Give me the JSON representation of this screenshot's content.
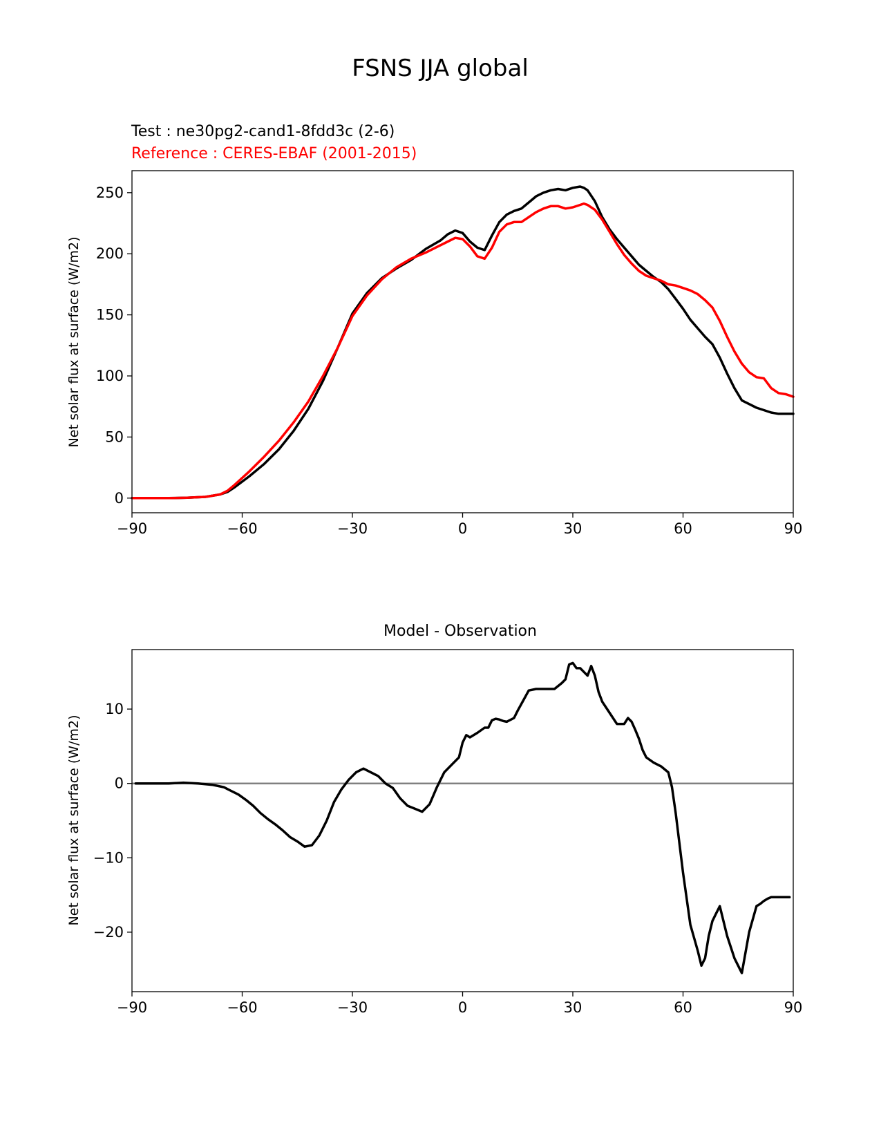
{
  "figure": {
    "suptitle": "FSNS JJA global",
    "test_label": "Test : ne30pg2-cand1-8fdd3c (2-6)",
    "reference_label": "Reference : CERES-EBAF (2001-2015)",
    "diff_title": "Model - Observation"
  },
  "colors": {
    "test": "#000000",
    "reference": "#ff0000",
    "zero_line": "#808080"
  },
  "chart_data": [
    {
      "type": "line",
      "ylabel": "Net solar flux at surface (W/m2)",
      "xlim": [
        -90,
        90
      ],
      "ylim": [
        -12,
        268
      ],
      "xticks": [
        -90,
        -60,
        -30,
        0,
        30,
        60,
        90
      ],
      "xtick_labels": [
        "−90",
        "−60",
        "−30",
        "0",
        "30",
        "60",
        "90"
      ],
      "yticks": [
        0,
        50,
        100,
        150,
        200,
        250
      ],
      "ytick_labels": [
        "0",
        "50",
        "100",
        "150",
        "200",
        "250"
      ],
      "series": [
        {
          "name": "Test : ne30pg2-cand1-8fdd3c (2-6)",
          "color": "#000000",
          "x": [
            -90,
            -80,
            -75,
            -70,
            -66,
            -64,
            -62,
            -58,
            -54,
            -50,
            -46,
            -42,
            -38,
            -34,
            -30,
            -26,
            -22,
            -18,
            -14,
            -10,
            -6,
            -4,
            -2,
            0,
            2,
            4,
            6,
            8,
            10,
            12,
            14,
            16,
            18,
            20,
            22,
            24,
            26,
            28,
            30,
            32,
            33,
            34,
            36,
            38,
            40,
            42,
            44,
            46,
            48,
            50,
            52,
            54,
            56,
            58,
            60,
            62,
            64,
            66,
            68,
            70,
            72,
            74,
            76,
            78,
            80,
            82,
            84,
            86,
            88,
            90
          ],
          "y": [
            0,
            0,
            0.3,
            1,
            3,
            5,
            9,
            18,
            28,
            40,
            55,
            73,
            96,
            123,
            151,
            168,
            180,
            188,
            195,
            204,
            211,
            216,
            219,
            217,
            210,
            205,
            203,
            215,
            226,
            232,
            235,
            237,
            242,
            247,
            250,
            252,
            253,
            252,
            254,
            255,
            254,
            252,
            243,
            230,
            220,
            212,
            205,
            198,
            191,
            186,
            181,
            177,
            171,
            163,
            155,
            146,
            139,
            132,
            126,
            115,
            102,
            90,
            80,
            77,
            74,
            72,
            70,
            69,
            69,
            69
          ]
        },
        {
          "name": "Reference : CERES-EBAF (2001-2015)",
          "color": "#ff0000",
          "x": [
            -90,
            -80,
            -75,
            -70,
            -66,
            -64,
            -62,
            -58,
            -54,
            -50,
            -46,
            -42,
            -38,
            -34,
            -30,
            -26,
            -22,
            -18,
            -14,
            -10,
            -6,
            -4,
            -2,
            0,
            2,
            4,
            6,
            8,
            10,
            12,
            14,
            16,
            18,
            20,
            22,
            24,
            26,
            28,
            30,
            32,
            33,
            34,
            36,
            38,
            40,
            42,
            44,
            46,
            48,
            50,
            52,
            54,
            56,
            58,
            60,
            62,
            64,
            66,
            68,
            70,
            72,
            74,
            76,
            78,
            80,
            82,
            84,
            86,
            88,
            90
          ],
          "y": [
            0,
            0,
            0.3,
            1,
            3,
            6,
            11,
            22,
            34,
            47,
            62,
            79,
            100,
            123,
            149,
            166,
            179,
            189,
            196,
            201,
            207,
            210,
            213,
            212,
            206,
            198,
            196,
            205,
            218,
            224,
            226,
            226,
            230,
            234,
            237,
            239,
            239,
            237,
            238,
            240,
            241,
            240,
            236,
            228,
            218,
            208,
            199,
            192,
            186,
            182,
            180,
            178,
            175,
            174,
            172,
            170,
            167,
            162,
            156,
            145,
            132,
            120,
            110,
            103,
            99,
            98,
            90,
            86,
            85,
            83
          ]
        }
      ]
    },
    {
      "type": "line",
      "title": "Model - Observation",
      "ylabel": "Net solar flux at surface (W/m2)",
      "xlim": [
        -90,
        90
      ],
      "ylim": [
        -28,
        18
      ],
      "xticks": [
        -90,
        -60,
        -30,
        0,
        30,
        60,
        90
      ],
      "xtick_labels": [
        "−90",
        "−60",
        "−30",
        "0",
        "30",
        "60",
        "90"
      ],
      "yticks": [
        -20,
        -10,
        0,
        10
      ],
      "ytick_labels": [
        "−20",
        "−10",
        "0",
        "10"
      ],
      "zero_line": 0,
      "series": [
        {
          "color": "#000000",
          "x": [
            -89,
            -80,
            -76,
            -72,
            -68,
            -65,
            -63,
            -61,
            -59,
            -57,
            -55,
            -53,
            -51,
            -49,
            -47,
            -45,
            -43,
            -41,
            -39,
            -37,
            -35,
            -33,
            -31,
            -29,
            -27,
            -25,
            -23,
            -21,
            -19,
            -17,
            -15,
            -13,
            -11,
            -9,
            -7,
            -5,
            -3,
            -1,
            0,
            1,
            2,
            4,
            6,
            7,
            8,
            9,
            10,
            11,
            12,
            14,
            15,
            18,
            20,
            22,
            25,
            27,
            28,
            29,
            30,
            31,
            32,
            33,
            34,
            35,
            36,
            37,
            38,
            40,
            42,
            44,
            45,
            46,
            47,
            48,
            49,
            50,
            52,
            54,
            56,
            57,
            58,
            59,
            60,
            62,
            64,
            65,
            66,
            67,
            68,
            69,
            70,
            71,
            72,
            73,
            74,
            76,
            78,
            80,
            81,
            82,
            83,
            84,
            86,
            88,
            89
          ],
          "y": [
            0,
            0,
            0.1,
            0,
            -0.2,
            -0.5,
            -1.0,
            -1.5,
            -2.2,
            -3.0,
            -4.0,
            -4.8,
            -5.5,
            -6.3,
            -7.2,
            -7.8,
            -8.5,
            -8.3,
            -7.0,
            -5.0,
            -2.5,
            -0.8,
            0.5,
            1.5,
            2.0,
            1.5,
            1.0,
            0,
            -0.6,
            -2.0,
            -3.0,
            -3.4,
            -3.8,
            -2.8,
            -0.5,
            1.5,
            2.5,
            3.5,
            5.5,
            6.5,
            6.2,
            6.8,
            7.5,
            7.5,
            8.5,
            8.7,
            8.6,
            8.4,
            8.3,
            8.8,
            9.8,
            12.5,
            12.7,
            12.7,
            12.7,
            13.5,
            14.0,
            16.0,
            16.2,
            15.5,
            15.5,
            15.0,
            14.5,
            15.8,
            14.5,
            12.3,
            11.0,
            9.5,
            8.0,
            8.0,
            8.8,
            8.3,
            7.2,
            6.0,
            4.5,
            3.5,
            2.8,
            2.3,
            1.5,
            -0.5,
            -4.0,
            -8.0,
            -12.0,
            -19.0,
            -22.5,
            -24.5,
            -23.5,
            -20.5,
            -18.5,
            -17.5,
            -16.5,
            -18.5,
            -20.5,
            -22.0,
            -23.5,
            -25.5,
            -20.0,
            -16.5,
            -16.2,
            -15.8,
            -15.5,
            -15.3,
            -15.3,
            -15.3,
            -15.3
          ]
        }
      ]
    }
  ]
}
